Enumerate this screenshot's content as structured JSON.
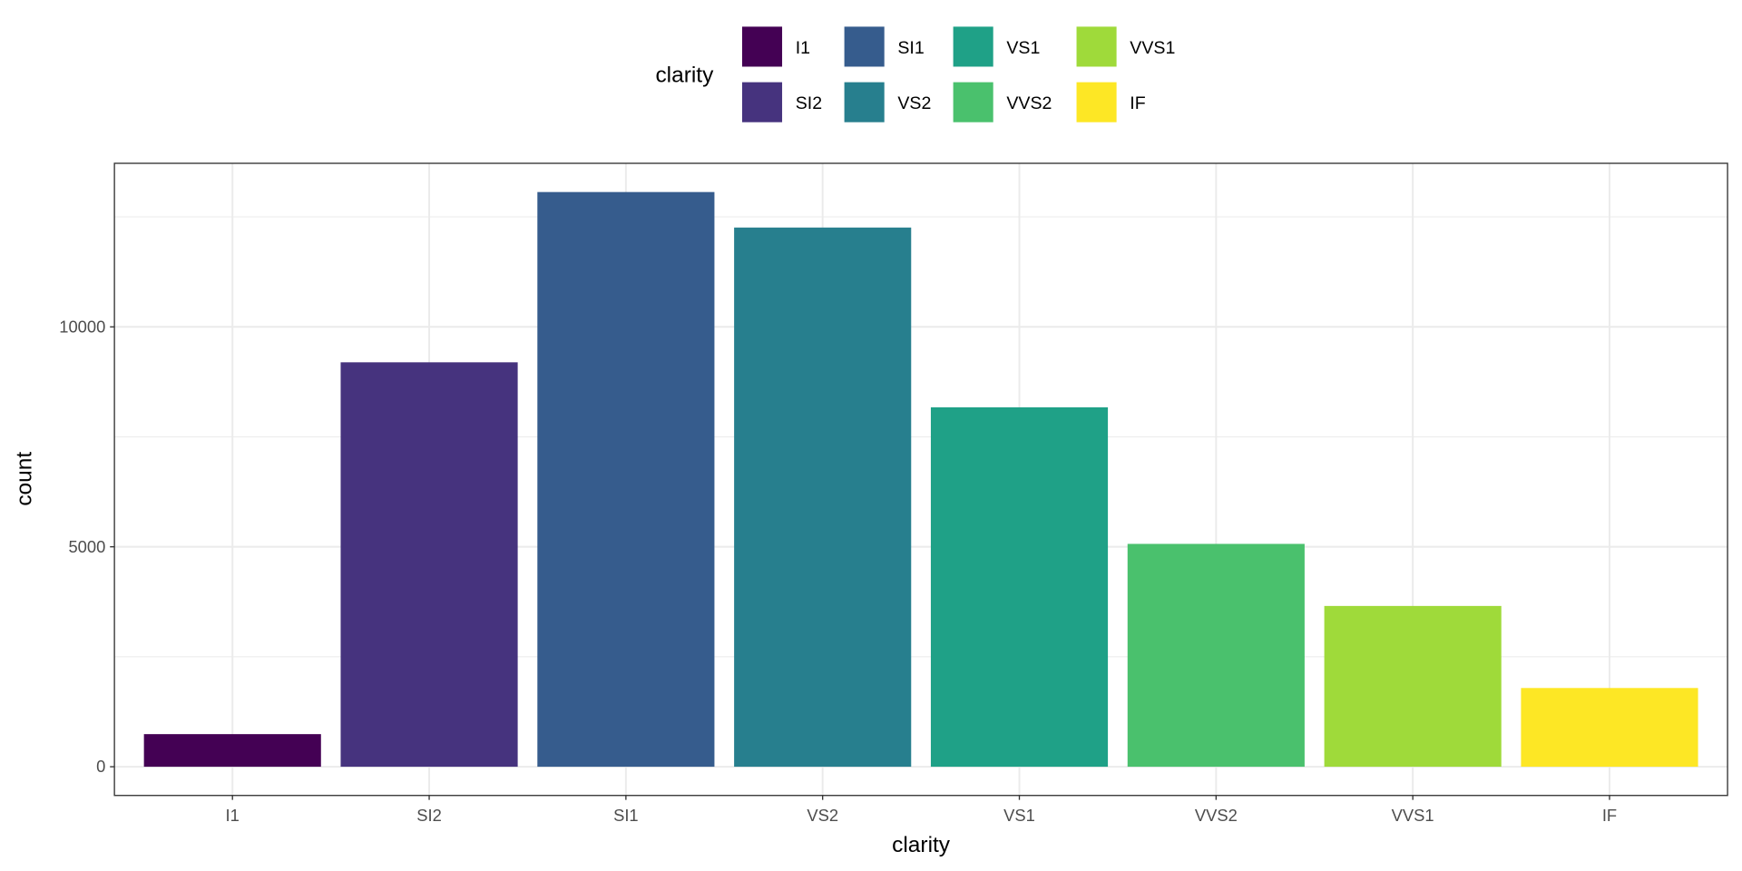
{
  "chart_data": {
    "type": "bar",
    "xlabel": "clarity",
    "ylabel": "count",
    "categories": [
      "I1",
      "SI2",
      "SI1",
      "VS2",
      "VS1",
      "VVS2",
      "VVS1",
      "IF"
    ],
    "values": [
      741,
      9194,
      13065,
      12258,
      8171,
      5066,
      3655,
      1790
    ],
    "colors": [
      "#440154",
      "#46337E",
      "#365C8D",
      "#277F8E",
      "#1FA187",
      "#4AC16D",
      "#9FDA3A",
      "#FDE725"
    ],
    "yticks": [
      0,
      5000,
      10000
    ],
    "ylim": [
      -653,
      13718
    ],
    "grid": true,
    "legend": {
      "title": "clarity",
      "placement": "top",
      "entries": [
        "I1",
        "SI2",
        "SI1",
        "VS2",
        "VS1",
        "VVS2",
        "VVS1",
        "IF"
      ]
    }
  }
}
